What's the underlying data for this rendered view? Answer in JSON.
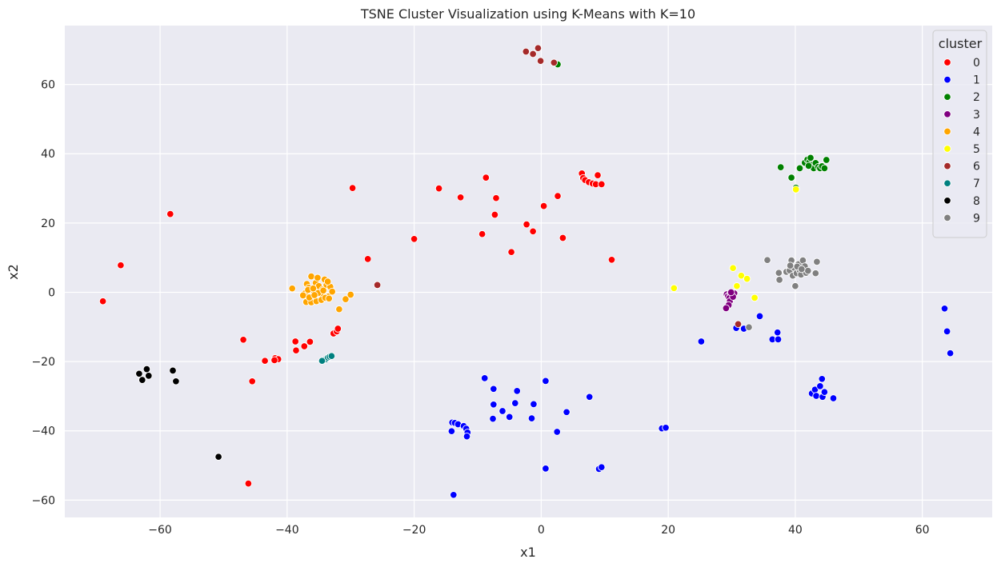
{
  "chart_data": {
    "type": "scatter",
    "title": "TSNE Cluster Visualization using K-Means with K=10",
    "xlabel": "x1",
    "ylabel": "x2",
    "xlim": [
      -75,
      71
    ],
    "ylim": [
      -65,
      77
    ],
    "xticks": [
      -60,
      -40,
      -20,
      0,
      20,
      40,
      60
    ],
    "yticks": [
      -60,
      -40,
      -20,
      0,
      20,
      40,
      60
    ],
    "xtick_labels": [
      "−60",
      "−40",
      "−20",
      "0",
      "20",
      "40",
      "60"
    ],
    "ytick_labels": [
      "−60",
      "−40",
      "−20",
      "0",
      "20",
      "40",
      "60"
    ],
    "grid": true,
    "legend": {
      "title": "cluster",
      "placement": "top-right"
    },
    "series": [
      {
        "name": "0",
        "color": "#ff0000",
        "points": [
          [
            -69,
            -2.6
          ],
          [
            -66.2,
            7.8
          ],
          [
            -58.4,
            22.6
          ],
          [
            -46.9,
            -13.7
          ],
          [
            -45.5,
            -25.7
          ],
          [
            -46.1,
            -55.2
          ],
          [
            -43.5,
            -19.8
          ],
          [
            -41.9,
            -19
          ],
          [
            -41.4,
            -19.3
          ],
          [
            -42,
            -19.6
          ],
          [
            -38.7,
            -14.2
          ],
          [
            -38.6,
            -16.8
          ],
          [
            -37.3,
            -15.6
          ],
          [
            -36.4,
            -14.3
          ],
          [
            -32.7,
            -11.9
          ],
          [
            -32.2,
            -11.3
          ],
          [
            -32,
            -10.5
          ],
          [
            -29.7,
            30.1
          ],
          [
            -27.3,
            9.6
          ],
          [
            -20,
            15.4
          ],
          [
            -16.1,
            30
          ],
          [
            -12.7,
            27.4
          ],
          [
            -9.3,
            16.8
          ],
          [
            -8.7,
            33.1
          ],
          [
            -7.1,
            27.2
          ],
          [
            -7.3,
            22.4
          ],
          [
            -4.7,
            11.6
          ],
          [
            -2.3,
            19.6
          ],
          [
            -1.3,
            17.6
          ],
          [
            0.4,
            24.9
          ],
          [
            2.6,
            27.8
          ],
          [
            3.4,
            15.7
          ],
          [
            6.4,
            34.3
          ],
          [
            6.6,
            33
          ],
          [
            6.9,
            32.4
          ],
          [
            7.5,
            31.8
          ],
          [
            8.1,
            31.4
          ],
          [
            8.6,
            31.2
          ],
          [
            8.9,
            33.8
          ],
          [
            9.5,
            31.2
          ],
          [
            11.1,
            9.4
          ]
        ]
      },
      {
        "name": "1",
        "color": "#0000ff",
        "points": [
          [
            -14,
            -37.6
          ],
          [
            -13.6,
            -37.7
          ],
          [
            -14.1,
            -40.1
          ],
          [
            -13.1,
            -38.1
          ],
          [
            -12.2,
            -38.6
          ],
          [
            -11.8,
            -39.4
          ],
          [
            -11.6,
            -40.5
          ],
          [
            -11.7,
            -41.6
          ],
          [
            -13.8,
            -58.5
          ],
          [
            -8.9,
            -24.8
          ],
          [
            -7.5,
            -27.9
          ],
          [
            -7.5,
            -32.4
          ],
          [
            -7.6,
            -36.5
          ],
          [
            -6.1,
            -34.3
          ],
          [
            -5,
            -36
          ],
          [
            -4.1,
            -32
          ],
          [
            -3.8,
            -28.5
          ],
          [
            -1.5,
            -36.4
          ],
          [
            -1.2,
            -32.3
          ],
          [
            0.7,
            -25.6
          ],
          [
            2.5,
            -40.3
          ],
          [
            4,
            -34.6
          ],
          [
            0.7,
            -50.9
          ],
          [
            7.6,
            -30.2
          ],
          [
            9.1,
            -51
          ],
          [
            9.5,
            -50.5
          ],
          [
            19,
            -39.3
          ],
          [
            19.6,
            -39.1
          ],
          [
            25.2,
            -14.2
          ],
          [
            30.7,
            -10.3
          ],
          [
            31.9,
            -10.5
          ],
          [
            34.4,
            -6.9
          ],
          [
            36.4,
            -13.6
          ],
          [
            37.3,
            -13.6
          ],
          [
            37.2,
            -11.6
          ],
          [
            42.6,
            -29.2
          ],
          [
            43.1,
            -28.1
          ],
          [
            43.3,
            -29.9
          ],
          [
            43.9,
            -27.1
          ],
          [
            44.3,
            -30.2
          ],
          [
            44.2,
            -25
          ],
          [
            44.6,
            -28.8
          ],
          [
            46,
            -30.6
          ],
          [
            63.5,
            -4.7
          ],
          [
            63.9,
            -11.3
          ],
          [
            64.4,
            -17.6
          ]
        ]
      },
      {
        "name": "2",
        "color": "#008000",
        "points": [
          [
            2.6,
            65.8
          ],
          [
            37.7,
            36.1
          ],
          [
            39.4,
            33.1
          ],
          [
            40.1,
            30.2
          ],
          [
            40.7,
            35.8
          ],
          [
            41.5,
            37.4
          ],
          [
            41.9,
            38.3
          ],
          [
            42.2,
            37.6
          ],
          [
            42.4,
            38.8
          ],
          [
            42.7,
            36.8
          ],
          [
            42.9,
            35.8
          ],
          [
            43.2,
            37.3
          ],
          [
            43.6,
            36.2
          ],
          [
            43.9,
            35.8
          ],
          [
            44.2,
            36.4
          ],
          [
            44.6,
            35.8
          ],
          [
            44.9,
            38.2
          ],
          [
            42.1,
            36.5
          ]
        ]
      },
      {
        "name": "3",
        "color": "#800080",
        "points": [
          [
            29.2,
            -0.6
          ],
          [
            29.4,
            -1.1
          ],
          [
            29.8,
            -0.4
          ],
          [
            30.1,
            -0.8
          ],
          [
            30.4,
            -0.3
          ],
          [
            29.6,
            -1.7
          ],
          [
            29.7,
            -2.6
          ],
          [
            29.5,
            -3.7
          ],
          [
            29.1,
            -4.6
          ],
          [
            30.2,
            -1.3
          ],
          [
            29.9,
            0
          ]
        ]
      },
      {
        "name": "4",
        "color": "#ffa500",
        "points": [
          [
            -39.2,
            1.1
          ],
          [
            -37.2,
            -0.3
          ],
          [
            -36.9,
            2.4
          ],
          [
            -36.6,
            1.3
          ],
          [
            -36.2,
            4.6
          ],
          [
            -35.8,
            0.4
          ],
          [
            -35.5,
            2.7
          ],
          [
            -35.2,
            4.2
          ],
          [
            -35,
            1.8
          ],
          [
            -34.7,
            -0.5
          ],
          [
            -34.4,
            0.8
          ],
          [
            -34.1,
            3.7
          ],
          [
            -33.8,
            2.1
          ],
          [
            -33.5,
            -1.2
          ],
          [
            -33.2,
            1.6
          ],
          [
            -32.9,
            0.2
          ],
          [
            -37.5,
            -0.9
          ],
          [
            -37,
            -2.8
          ],
          [
            -36.2,
            -2.9
          ],
          [
            -35.4,
            -2.6
          ],
          [
            -34.6,
            -2.2
          ],
          [
            -34,
            -1.6
          ],
          [
            -36.7,
            0.7
          ],
          [
            -35.9,
            1.1
          ],
          [
            -35.1,
            -0.2
          ],
          [
            -34.3,
            0.5
          ],
          [
            -33.6,
            3.1
          ],
          [
            -33.4,
            -1.8
          ],
          [
            -36.5,
            -1.5
          ],
          [
            -35.7,
            -0.8
          ],
          [
            -31.8,
            -4.9
          ],
          [
            -30.8,
            -2
          ],
          [
            -30,
            -0.7
          ]
        ]
      },
      {
        "name": "5",
        "color": "#ffff00",
        "points": [
          [
            20.9,
            1.2
          ],
          [
            30.2,
            7
          ],
          [
            30.8,
            1.8
          ],
          [
            31.5,
            4.8
          ],
          [
            32.4,
            3.9
          ],
          [
            33.6,
            -1.6
          ],
          [
            40.1,
            29.7
          ]
        ]
      },
      {
        "name": "6",
        "color": "#a52a2a",
        "points": [
          [
            -2.4,
            69.5
          ],
          [
            -1.3,
            68.8
          ],
          [
            -0.5,
            70.5
          ],
          [
            -0.1,
            66.8
          ],
          [
            2,
            66.3
          ],
          [
            -25.8,
            2.1
          ],
          [
            31,
            -9.2
          ]
        ]
      },
      {
        "name": "7",
        "color": "#008080",
        "points": [
          [
            -34.2,
            -19.6
          ],
          [
            -33.9,
            -19.3
          ],
          [
            -33.6,
            -18.9
          ],
          [
            -33.3,
            -18.6
          ],
          [
            -33,
            -18.4
          ],
          [
            -34.5,
            -19.8
          ]
        ]
      },
      {
        "name": "8",
        "color": "#000000",
        "points": [
          [
            -63.3,
            -23.5
          ],
          [
            -62.8,
            -25.3
          ],
          [
            -62.1,
            -22.2
          ],
          [
            -61.8,
            -24.1
          ],
          [
            -58,
            -22.6
          ],
          [
            -57.5,
            -25.7
          ],
          [
            -50.8,
            -47.5
          ]
        ]
      },
      {
        "name": "9",
        "color": "#808080",
        "points": [
          [
            32.7,
            -10.1
          ],
          [
            35.6,
            9.3
          ],
          [
            37.4,
            5.6
          ],
          [
            37.5,
            3.6
          ],
          [
            38.6,
            5.9
          ],
          [
            39.1,
            6.3
          ],
          [
            39.4,
            9.2
          ],
          [
            39.6,
            4.8
          ],
          [
            39.8,
            7.1
          ],
          [
            40,
            1.8
          ],
          [
            40.2,
            5.5
          ],
          [
            40.5,
            8.1
          ],
          [
            40.7,
            6.3
          ],
          [
            40.9,
            5.1
          ],
          [
            41.2,
            9.2
          ],
          [
            41.5,
            7.5
          ],
          [
            41.7,
            5.6
          ],
          [
            42,
            6.2
          ],
          [
            43.2,
            5.5
          ],
          [
            43.4,
            8.8
          ],
          [
            39.2,
            7.7
          ],
          [
            40.3,
            7.4
          ],
          [
            41,
            6.7
          ]
        ]
      }
    ]
  }
}
